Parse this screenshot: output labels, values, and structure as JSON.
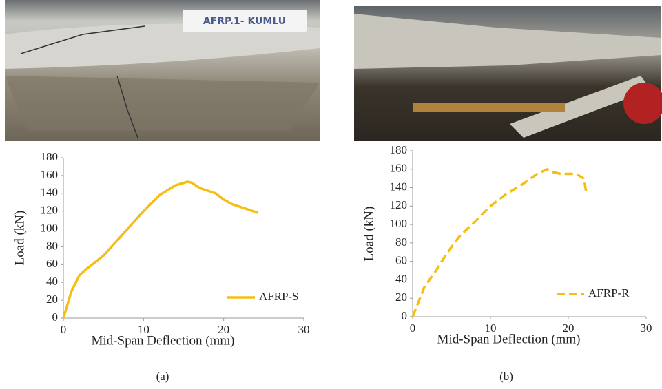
{
  "photos": [
    {
      "label": "AFRP.1- KUMLU"
    }
  ],
  "captions": [
    "(a)",
    "(b)"
  ],
  "chart_data": [
    {
      "type": "line",
      "xlabel": "Mid-Span Deflection (mm)",
      "ylabel": "Load (kN)",
      "xlim": [
        0,
        30
      ],
      "xticks": [
        0,
        10,
        20,
        30
      ],
      "ylim": [
        0,
        180
      ],
      "yticks": [
        0,
        20,
        40,
        60,
        80,
        100,
        120,
        140,
        160,
        180
      ],
      "legend": "lower right",
      "series": [
        {
          "name": "AFRP-S",
          "color": "#f5be14",
          "line_style": "solid",
          "x": [
            0,
            0.5,
            1,
            2,
            3,
            4,
            5,
            6,
            8,
            10,
            12,
            14,
            15.5,
            16,
            17,
            19,
            20,
            21,
            23,
            24.3
          ],
          "values": [
            0,
            15,
            30,
            48,
            56,
            63,
            70,
            80,
            100,
            120,
            138,
            149,
            153,
            152,
            146,
            140,
            133,
            128,
            122,
            118
          ]
        }
      ]
    },
    {
      "type": "line",
      "xlabel": "Mid-Span Deflection (mm)",
      "ylabel": "Load (kN)",
      "xlim": [
        0,
        30
      ],
      "xticks": [
        0,
        10,
        20,
        30
      ],
      "ylim": [
        0,
        180
      ],
      "yticks": [
        0,
        20,
        40,
        60,
        80,
        100,
        120,
        140,
        160,
        180
      ],
      "legend": "lower right",
      "series": [
        {
          "name": "AFRP-R",
          "color": "#f5be14",
          "line_style": "dashed",
          "x": [
            0,
            1.5,
            3,
            4.5,
            6,
            8,
            10,
            12,
            14,
            16,
            17.3,
            18,
            19,
            20,
            21,
            22,
            22.3
          ],
          "values": [
            0,
            32,
            50,
            70,
            87,
            103,
            120,
            133,
            143,
            155,
            160,
            157,
            155,
            155,
            155,
            150,
            135
          ]
        }
      ]
    }
  ]
}
